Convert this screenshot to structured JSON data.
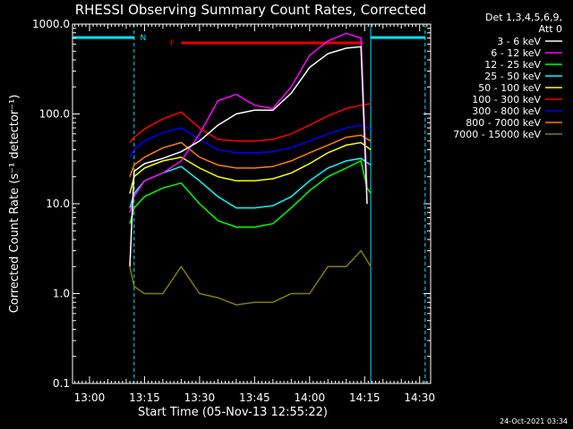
{
  "chart_data": {
    "type": "line",
    "title": "RHESSI Observing Summary Count Rates, Corrected",
    "xlabel": "Start Time (05-Nov-13 12:55:22)",
    "ylabel": "Corrected Count Rate (s⁻¹ detector⁻¹)",
    "footer": "24-Oct-2021 03:34",
    "legend_header": [
      "Det 1,3,4,5,6,9,",
      "Att 0"
    ],
    "y_scale": "log",
    "xlim": [
      "12:55:22",
      "14:33:00"
    ],
    "ylim": [
      0.1,
      1000
    ],
    "x_ticks": [
      "13:00",
      "13:15",
      "13:30",
      "13:45",
      "14:00",
      "14:15",
      "14:30"
    ],
    "y_ticks": [
      "0.1",
      "1.0",
      "10.0",
      "100.0",
      "1000.0"
    ],
    "flags": [
      {
        "label": "N",
        "color": "#00e5ff",
        "segments": [
          [
            "12:55:22",
            "13:12:10"
          ],
          [
            "14:16:40",
            "14:31:30"
          ]
        ]
      },
      {
        "label": "F",
        "color": "#e60000",
        "segments": [
          [
            "13:25:00",
            "14:14:30"
          ]
        ]
      }
    ],
    "gaps": [
      {
        "color": "#00e5ff",
        "start": "13:12:10",
        "end": "14:16:40"
      }
    ],
    "series": [
      {
        "name": "3 - 6 keV",
        "color": "#ffffff",
        "x": [
          "13:11:00",
          "13:12:10",
          "13:15",
          "13:20",
          "13:25",
          "13:30",
          "13:35",
          "13:40",
          "13:45",
          "13:50",
          "13:55",
          "14:00",
          "14:05",
          "14:10",
          "14:14",
          "14:15:40"
        ],
        "y": [
          2,
          23,
          28,
          32,
          38,
          50,
          75,
          100,
          110,
          110,
          170,
          330,
          470,
          540,
          560,
          10
        ]
      },
      {
        "name": "6 - 12 keV",
        "color": "#ff00ff",
        "x": [
          "13:11:00",
          "13:12:10",
          "13:15",
          "13:20",
          "13:25",
          "13:30",
          "13:35",
          "13:40",
          "13:45",
          "13:50",
          "13:55",
          "14:00",
          "14:05",
          "14:10",
          "14:14",
          "14:15:40"
        ],
        "y": [
          8,
          12,
          18,
          22,
          30,
          60,
          140,
          165,
          125,
          115,
          200,
          450,
          650,
          790,
          700,
          15
        ]
      },
      {
        "name": "12 - 25 keV",
        "color": "#00ff00",
        "x": [
          "13:11:00",
          "13:12:10",
          "13:15",
          "13:20",
          "13:25",
          "13:30",
          "13:35",
          "13:40",
          "13:45",
          "13:50",
          "13:55",
          "14:00",
          "14:05",
          "14:10",
          "14:14",
          "14:15:40",
          "14:16:40"
        ],
        "y": [
          6,
          9,
          12,
          15,
          17,
          10,
          6.5,
          5.5,
          5.5,
          6,
          9,
          14,
          20,
          25,
          30,
          15,
          13
        ]
      },
      {
        "name": "25 - 50 keV",
        "color": "#00ffff",
        "x": [
          "13:11:00",
          "13:12:10",
          "13:15",
          "13:20",
          "13:25",
          "13:30",
          "13:35",
          "13:40",
          "13:45",
          "13:50",
          "13:55",
          "14:00",
          "14:05",
          "14:10",
          "14:14",
          "14:16:40"
        ],
        "y": [
          9,
          13,
          18,
          22,
          26,
          18,
          12,
          9,
          9,
          9.5,
          12,
          18,
          25,
          30,
          32,
          27
        ]
      },
      {
        "name": "50 - 100 keV",
        "color": "#ffff00",
        "x": [
          "13:11:00",
          "13:12:10",
          "13:15",
          "13:20",
          "13:25",
          "13:30",
          "13:35",
          "13:40",
          "13:45",
          "13:50",
          "13:55",
          "14:00",
          "14:05",
          "14:10",
          "14:14",
          "14:16:40"
        ],
        "y": [
          13,
          20,
          25,
          30,
          33,
          25,
          20,
          18,
          18,
          19,
          22,
          28,
          37,
          45,
          48,
          40
        ]
      },
      {
        "name": "100 - 300 keV",
        "color": "#ff0000",
        "x": [
          "13:11:00",
          "13:12:10",
          "13:15",
          "13:20",
          "13:25",
          "13:30",
          "13:35",
          "13:40",
          "13:45",
          "13:50",
          "13:55",
          "14:00",
          "14:05",
          "14:10",
          "14:14",
          "14:16:40"
        ],
        "y": [
          48,
          55,
          68,
          88,
          105,
          70,
          52,
          50,
          50,
          52,
          60,
          75,
          95,
          115,
          125,
          130
        ]
      },
      {
        "name": "300 - 800 keV",
        "color": "#0000ff",
        "x": [
          "13:11:00",
          "13:12:10",
          "13:15",
          "13:20",
          "13:25",
          "13:30",
          "13:35",
          "13:40",
          "13:45",
          "13:50",
          "13:55",
          "14:00",
          "14:05",
          "14:10",
          "14:14",
          "14:16:40"
        ],
        "y": [
          33,
          40,
          50,
          62,
          70,
          52,
          40,
          37,
          37,
          38,
          42,
          50,
          60,
          70,
          75,
          68
        ]
      },
      {
        "name": "800 - 7000 keV",
        "color": "#ff8000",
        "x": [
          "13:11:00",
          "13:12:10",
          "13:15",
          "13:20",
          "13:25",
          "13:30",
          "13:35",
          "13:40",
          "13:45",
          "13:50",
          "13:55",
          "14:00",
          "14:05",
          "14:10",
          "14:14",
          "14:16:40"
        ],
        "y": [
          20,
          27,
          33,
          42,
          48,
          33,
          27,
          25,
          25,
          26,
          30,
          37,
          45,
          55,
          58,
          50
        ]
      },
      {
        "name": "7000 - 15000 keV",
        "color": "#808000",
        "x": [
          "13:11:00",
          "13:12:10",
          "13:15",
          "13:20",
          "13:25",
          "13:30",
          "13:35",
          "13:40",
          "13:45",
          "13:50",
          "13:55",
          "14:00",
          "14:05",
          "14:10",
          "14:14",
          "14:16:40"
        ],
        "y": [
          2,
          1.2,
          1.0,
          1.0,
          2.0,
          1.0,
          0.9,
          0.75,
          0.8,
          0.8,
          1.0,
          1.0,
          2.0,
          2.0,
          3.0,
          2.0
        ]
      }
    ]
  }
}
